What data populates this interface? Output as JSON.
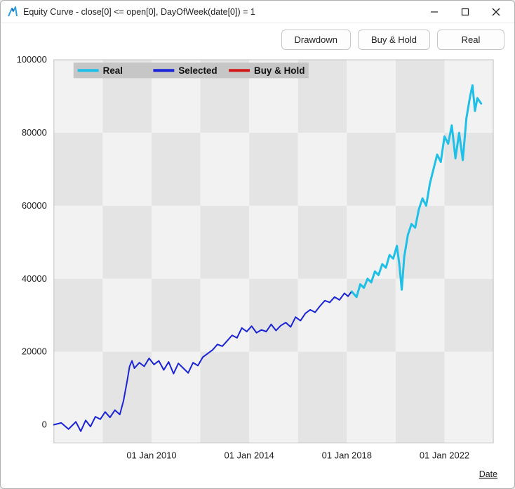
{
  "window": {
    "title": "Equity Curve - close[0] <= open[0], DayOfWeek(date[0]) = 1",
    "icon_color_1": "#2aa0d8",
    "icon_color_2": "#1565c0"
  },
  "toolbar": {
    "buttons": [
      {
        "label": "Drawdown"
      },
      {
        "label": "Buy & Hold"
      },
      {
        "label": "Real"
      }
    ]
  },
  "chart": {
    "type": "line",
    "background_color": "#ffffff",
    "plot_border_color": "#bfbfbf",
    "grid_band_colors": [
      "#f2f2f2",
      "#e4e4e4"
    ],
    "axis_tick_color": "#222222",
    "axis_font_size": 13,
    "ylim": [
      -5000,
      100000
    ],
    "ytick_step": 20000,
    "yticks": [
      0,
      20000,
      40000,
      60000,
      80000,
      100000
    ],
    "xlim": [
      2006,
      2024
    ],
    "xticks": [
      {
        "x": 2010,
        "label": "01 Jan 2010"
      },
      {
        "x": 2014,
        "label": "01 Jan 2014"
      },
      {
        "x": 2018,
        "label": "01 Jan 2018"
      },
      {
        "x": 2022,
        "label": "01 Jan 2022"
      }
    ],
    "xaxis_label": "Date",
    "legend": {
      "bg_color": "#c6c6c6",
      "items": [
        {
          "label": "Real",
          "color": "#1fc0e8"
        },
        {
          "label": "Selected",
          "color": "#1a23d6"
        },
        {
          "label": "Buy & Hold",
          "color": "#d11919"
        }
      ]
    },
    "series": [
      {
        "name": "selected",
        "color": "#1a23d6",
        "line_width": 2,
        "points": [
          [
            2006.0,
            0
          ],
          [
            2006.3,
            500
          ],
          [
            2006.6,
            -1200
          ],
          [
            2006.9,
            800
          ],
          [
            2007.1,
            -1800
          ],
          [
            2007.3,
            1200
          ],
          [
            2007.5,
            -500
          ],
          [
            2007.7,
            2200
          ],
          [
            2007.9,
            1500
          ],
          [
            2008.1,
            3500
          ],
          [
            2008.3,
            2000
          ],
          [
            2008.5,
            4000
          ],
          [
            2008.7,
            2800
          ],
          [
            2008.85,
            6500
          ],
          [
            2009.0,
            12000
          ],
          [
            2009.1,
            16000
          ],
          [
            2009.2,
            17500
          ],
          [
            2009.3,
            15500
          ],
          [
            2009.5,
            17000
          ],
          [
            2009.7,
            16000
          ],
          [
            2009.9,
            18200
          ],
          [
            2010.1,
            16500
          ],
          [
            2010.3,
            17500
          ],
          [
            2010.5,
            15000
          ],
          [
            2010.7,
            17200
          ],
          [
            2010.9,
            14000
          ],
          [
            2011.1,
            16800
          ],
          [
            2011.3,
            15500
          ],
          [
            2011.5,
            14200
          ],
          [
            2011.7,
            17000
          ],
          [
            2011.9,
            16200
          ],
          [
            2012.1,
            18500
          ],
          [
            2012.3,
            19500
          ],
          [
            2012.5,
            20500
          ],
          [
            2012.7,
            22000
          ],
          [
            2012.9,
            21500
          ],
          [
            2013.1,
            23000
          ],
          [
            2013.3,
            24500
          ],
          [
            2013.5,
            23800
          ],
          [
            2013.7,
            26500
          ],
          [
            2013.9,
            25500
          ],
          [
            2014.1,
            27000
          ],
          [
            2014.3,
            25200
          ],
          [
            2014.5,
            26000
          ],
          [
            2014.7,
            25500
          ],
          [
            2014.9,
            27500
          ],
          [
            2015.1,
            25800
          ],
          [
            2015.3,
            27200
          ],
          [
            2015.5,
            28000
          ],
          [
            2015.7,
            26800
          ],
          [
            2015.9,
            29500
          ],
          [
            2016.1,
            28500
          ],
          [
            2016.3,
            30500
          ],
          [
            2016.5,
            31500
          ],
          [
            2016.7,
            30800
          ],
          [
            2016.9,
            32500
          ],
          [
            2017.1,
            34000
          ],
          [
            2017.3,
            33500
          ],
          [
            2017.5,
            35000
          ],
          [
            2017.7,
            34200
          ],
          [
            2017.9,
            36000
          ],
          [
            2018.05,
            35200
          ],
          [
            2018.2,
            36500
          ]
        ]
      },
      {
        "name": "real",
        "color": "#1fc0e8",
        "line_width": 3,
        "points": [
          [
            2018.2,
            36500
          ],
          [
            2018.4,
            35000
          ],
          [
            2018.55,
            38500
          ],
          [
            2018.7,
            37500
          ],
          [
            2018.85,
            40000
          ],
          [
            2019.0,
            39000
          ],
          [
            2019.15,
            42000
          ],
          [
            2019.3,
            41000
          ],
          [
            2019.45,
            44000
          ],
          [
            2019.6,
            43000
          ],
          [
            2019.75,
            46500
          ],
          [
            2019.9,
            45500
          ],
          [
            2020.05,
            49000
          ],
          [
            2020.15,
            44000
          ],
          [
            2020.25,
            37000
          ],
          [
            2020.35,
            46000
          ],
          [
            2020.5,
            52000
          ],
          [
            2020.65,
            55000
          ],
          [
            2020.8,
            54000
          ],
          [
            2020.95,
            59000
          ],
          [
            2021.1,
            62000
          ],
          [
            2021.25,
            60000
          ],
          [
            2021.4,
            66000
          ],
          [
            2021.55,
            70000
          ],
          [
            2021.7,
            74000
          ],
          [
            2021.85,
            72000
          ],
          [
            2022.0,
            79000
          ],
          [
            2022.15,
            77000
          ],
          [
            2022.3,
            82000
          ],
          [
            2022.45,
            73000
          ],
          [
            2022.6,
            80000
          ],
          [
            2022.75,
            72500
          ],
          [
            2022.9,
            84000
          ],
          [
            2023.05,
            90000
          ],
          [
            2023.15,
            93000
          ],
          [
            2023.25,
            86000
          ],
          [
            2023.35,
            89500
          ],
          [
            2023.5,
            88000
          ]
        ]
      }
    ]
  }
}
